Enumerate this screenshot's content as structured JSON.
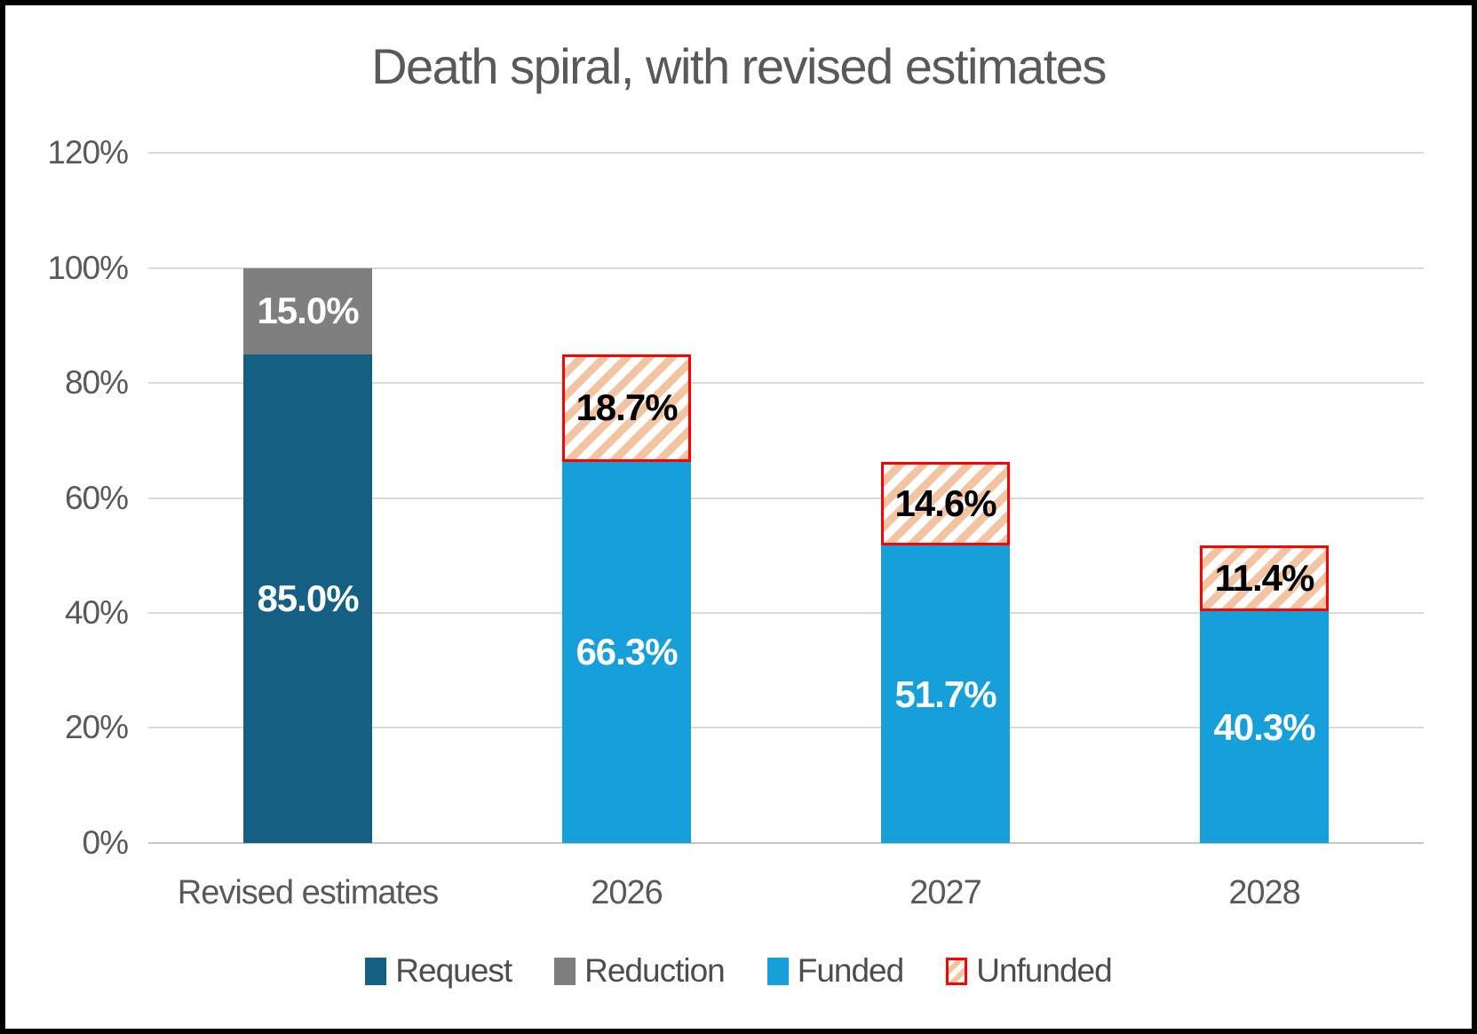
{
  "page": {
    "background": "#FFFFFF",
    "frame_border_color": "#000000"
  },
  "chart_data": {
    "type": "stacked-bar",
    "title": "Death spiral, with revised estimates",
    "xlabel": "",
    "ylabel": "",
    "ylim": [
      0,
      120
    ],
    "y_tick_step": 20,
    "y_ticks": [
      "120%",
      "100%",
      "80%",
      "60%",
      "40%",
      "20%",
      "0%"
    ],
    "grid": true,
    "legend_position": "bottom",
    "categories": [
      "Revised estimates",
      "2026",
      "2027",
      "2028"
    ],
    "series_colors": {
      "Request": "#156082",
      "Reduction": "#7F7F7F",
      "Funded": "#169FD8",
      "Unfunded": "hatch"
    },
    "unfunded_style": {
      "border": "#FF0000",
      "stripe": "#F2C4A2",
      "fill": "#FFFFFF"
    },
    "axis_style": {
      "text_color": "#595959",
      "gridline_color": "#D9D9D9"
    },
    "bars": [
      {
        "category": "Revised estimates",
        "bottom": {
          "series": "Request",
          "value": 85.0,
          "label": "85.0%",
          "label_color": "#FFFFFF"
        },
        "top": {
          "series": "Reduction",
          "value": 15.0,
          "label": "15.0%",
          "label_color": "#FFFFFF"
        }
      },
      {
        "category": "2026",
        "bottom": {
          "series": "Funded",
          "value": 66.3,
          "label": "66.3%",
          "label_color": "#FFFFFF"
        },
        "top": {
          "series": "Unfunded",
          "value": 18.7,
          "label": "18.7%",
          "label_color": "#000000"
        }
      },
      {
        "category": "2027",
        "bottom": {
          "series": "Funded",
          "value": 51.7,
          "label": "51.7%",
          "label_color": "#FFFFFF"
        },
        "top": {
          "series": "Unfunded",
          "value": 14.6,
          "label": "14.6%",
          "label_color": "#000000"
        }
      },
      {
        "category": "2028",
        "bottom": {
          "series": "Funded",
          "value": 40.3,
          "label": "40.3%",
          "label_color": "#FFFFFF"
        },
        "top": {
          "series": "Unfunded",
          "value": 11.4,
          "label": "11.4%",
          "label_color": "#000000"
        }
      }
    ],
    "legend": [
      {
        "label": "Request",
        "color": "#156082"
      },
      {
        "label": "Reduction",
        "color": "#7F7F7F"
      },
      {
        "label": "Funded",
        "color": "#169FD8"
      },
      {
        "label": "Unfunded",
        "color": "hatch"
      }
    ]
  }
}
